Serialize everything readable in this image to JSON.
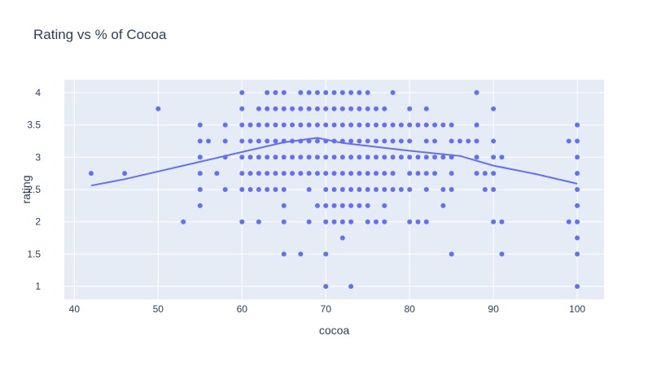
{
  "chart_data": {
    "type": "scatter",
    "title": "Rating vs % of Cocoa",
    "xlabel": "cocoa",
    "ylabel": "rating",
    "xlim": [
      38.8,
      103.2
    ],
    "ylim": [
      0.8,
      4.2
    ],
    "x_ticks": [
      40,
      50,
      60,
      70,
      80,
      90,
      100
    ],
    "y_ticks": [
      1,
      1.5,
      2,
      2.5,
      3,
      3.5,
      4
    ],
    "grid": true,
    "colors": {
      "marker": "#636efa",
      "plot_bg": "#e5ecf6",
      "grid": "#ffffff",
      "text": "#2a3f5f"
    },
    "series": [
      {
        "mode": "markers",
        "points": [
          [
            42,
            2.75
          ],
          [
            46,
            2.75
          ],
          [
            50,
            3.75
          ],
          [
            53,
            2
          ],
          [
            55,
            3.5
          ],
          [
            55,
            3.25
          ],
          [
            55,
            3
          ],
          [
            55,
            2.75
          ],
          [
            55,
            2.5
          ],
          [
            55,
            2.25
          ],
          [
            56,
            3.25
          ],
          [
            57,
            2.75
          ],
          [
            58,
            3.5
          ],
          [
            58,
            3.25
          ],
          [
            58,
            3
          ],
          [
            58,
            2.5
          ],
          [
            60,
            4
          ],
          [
            60,
            3.75
          ],
          [
            60,
            3.5
          ],
          [
            60,
            3.25
          ],
          [
            60,
            3
          ],
          [
            60,
            2.75
          ],
          [
            60,
            2.5
          ],
          [
            60,
            2
          ],
          [
            61,
            3.5
          ],
          [
            61,
            3.25
          ],
          [
            61,
            3
          ],
          [
            61,
            2.75
          ],
          [
            61,
            2.5
          ],
          [
            62,
            3.75
          ],
          [
            62,
            3.5
          ],
          [
            62,
            3.25
          ],
          [
            62,
            3
          ],
          [
            62,
            2.75
          ],
          [
            62,
            2.5
          ],
          [
            62,
            2
          ],
          [
            63,
            4
          ],
          [
            63,
            3.75
          ],
          [
            63,
            3.5
          ],
          [
            63,
            3.25
          ],
          [
            63,
            3
          ],
          [
            63,
            2.75
          ],
          [
            63,
            2.5
          ],
          [
            64,
            4
          ],
          [
            64,
            3.75
          ],
          [
            64,
            3.5
          ],
          [
            64,
            3.25
          ],
          [
            64,
            3
          ],
          [
            64,
            2.75
          ],
          [
            64,
            2.5
          ],
          [
            65,
            4
          ],
          [
            65,
            3.75
          ],
          [
            65,
            3.5
          ],
          [
            65,
            3.25
          ],
          [
            65,
            3
          ],
          [
            65,
            2.75
          ],
          [
            65,
            2.5
          ],
          [
            65,
            2.25
          ],
          [
            65,
            2
          ],
          [
            65,
            1.5
          ],
          [
            66,
            3.75
          ],
          [
            66,
            3.5
          ],
          [
            66,
            3.25
          ],
          [
            66,
            3
          ],
          [
            66,
            2.75
          ],
          [
            67,
            4
          ],
          [
            67,
            3.75
          ],
          [
            67,
            3.5
          ],
          [
            67,
            3.25
          ],
          [
            67,
            3
          ],
          [
            67,
            2.75
          ],
          [
            67,
            1.5
          ],
          [
            68,
            4
          ],
          [
            68,
            3.75
          ],
          [
            68,
            3.5
          ],
          [
            68,
            3.25
          ],
          [
            68,
            3
          ],
          [
            68,
            2.75
          ],
          [
            68,
            2.5
          ],
          [
            68,
            2
          ],
          [
            69,
            4
          ],
          [
            69,
            3.75
          ],
          [
            69,
            3.5
          ],
          [
            69,
            3.25
          ],
          [
            69,
            3
          ],
          [
            69,
            2.75
          ],
          [
            69,
            2.25
          ],
          [
            70,
            4
          ],
          [
            70,
            3.75
          ],
          [
            70,
            3.5
          ],
          [
            70,
            3.25
          ],
          [
            70,
            3
          ],
          [
            70,
            2.75
          ],
          [
            70,
            2.5
          ],
          [
            70,
            2.25
          ],
          [
            70,
            2
          ],
          [
            70,
            1.5
          ],
          [
            70,
            1
          ],
          [
            71,
            4
          ],
          [
            71,
            3.75
          ],
          [
            71,
            3.5
          ],
          [
            71,
            3.25
          ],
          [
            71,
            3
          ],
          [
            71,
            2.75
          ],
          [
            71,
            2.5
          ],
          [
            71,
            2.25
          ],
          [
            71,
            2
          ],
          [
            72,
            4
          ],
          [
            72,
            3.75
          ],
          [
            72,
            3.5
          ],
          [
            72,
            3.25
          ],
          [
            72,
            3
          ],
          [
            72,
            2.75
          ],
          [
            72,
            2.5
          ],
          [
            72,
            2.25
          ],
          [
            72,
            2
          ],
          [
            72,
            1.75
          ],
          [
            73,
            4
          ],
          [
            73,
            3.75
          ],
          [
            73,
            3.5
          ],
          [
            73,
            3.25
          ],
          [
            73,
            3
          ],
          [
            73,
            2.75
          ],
          [
            73,
            2.5
          ],
          [
            73,
            2.25
          ],
          [
            73,
            2
          ],
          [
            73,
            1
          ],
          [
            74,
            4
          ],
          [
            74,
            3.75
          ],
          [
            74,
            3.5
          ],
          [
            74,
            3.25
          ],
          [
            74,
            3
          ],
          [
            74,
            2.75
          ],
          [
            74,
            2.5
          ],
          [
            74,
            2.25
          ],
          [
            75,
            4
          ],
          [
            75,
            3.75
          ],
          [
            75,
            3.5
          ],
          [
            75,
            3.25
          ],
          [
            75,
            3
          ],
          [
            75,
            2.75
          ],
          [
            75,
            2.5
          ],
          [
            75,
            2.25
          ],
          [
            75,
            2
          ],
          [
            76,
            3.75
          ],
          [
            76,
            3.5
          ],
          [
            76,
            3.25
          ],
          [
            76,
            3
          ],
          [
            76,
            2.75
          ],
          [
            76,
            2.5
          ],
          [
            76,
            2
          ],
          [
            77,
            3.75
          ],
          [
            77,
            3.5
          ],
          [
            77,
            3.25
          ],
          [
            77,
            3
          ],
          [
            77,
            2.75
          ],
          [
            77,
            2.5
          ],
          [
            77,
            2.25
          ],
          [
            77,
            2
          ],
          [
            78,
            4
          ],
          [
            78,
            3.5
          ],
          [
            78,
            3.25
          ],
          [
            78,
            3
          ],
          [
            78,
            2.75
          ],
          [
            78,
            2.5
          ],
          [
            79,
            3.5
          ],
          [
            79,
            3.25
          ],
          [
            79,
            3
          ],
          [
            79,
            2.5
          ],
          [
            80,
            3.75
          ],
          [
            80,
            3.5
          ],
          [
            80,
            3.25
          ],
          [
            80,
            3
          ],
          [
            80,
            2.75
          ],
          [
            80,
            2.5
          ],
          [
            80,
            2
          ],
          [
            81,
            3.5
          ],
          [
            81,
            3
          ],
          [
            81,
            2.75
          ],
          [
            81,
            2
          ],
          [
            82,
            3.75
          ],
          [
            82,
            3.5
          ],
          [
            82,
            3.25
          ],
          [
            82,
            3
          ],
          [
            82,
            2.75
          ],
          [
            82,
            2.5
          ],
          [
            82,
            2
          ],
          [
            83,
            3.5
          ],
          [
            83,
            3.25
          ],
          [
            83,
            3
          ],
          [
            83,
            2.75
          ],
          [
            84,
            3.5
          ],
          [
            84,
            3
          ],
          [
            84,
            2.5
          ],
          [
            84,
            2.25
          ],
          [
            85,
            3.5
          ],
          [
            85,
            3.25
          ],
          [
            85,
            3
          ],
          [
            85,
            2.75
          ],
          [
            85,
            2.5
          ],
          [
            85,
            1.5
          ],
          [
            86,
            3.25
          ],
          [
            87,
            3.25
          ],
          [
            88,
            4
          ],
          [
            88,
            3.5
          ],
          [
            88,
            3.25
          ],
          [
            88,
            3
          ],
          [
            88,
            2.75
          ],
          [
            89,
            2.75
          ],
          [
            89,
            2.5
          ],
          [
            90,
            3.75
          ],
          [
            90,
            3.25
          ],
          [
            90,
            3
          ],
          [
            90,
            2.75
          ],
          [
            90,
            2.5
          ],
          [
            90,
            2
          ],
          [
            91,
            3
          ],
          [
            91,
            2
          ],
          [
            91,
            1.5
          ],
          [
            99,
            3.25
          ],
          [
            99,
            2
          ],
          [
            100,
            3.5
          ],
          [
            100,
            3.25
          ],
          [
            100,
            3
          ],
          [
            100,
            2.75
          ],
          [
            100,
            2.5
          ],
          [
            100,
            2.25
          ],
          [
            100,
            2
          ],
          [
            100,
            1.75
          ],
          [
            100,
            1.5
          ],
          [
            100,
            1
          ]
        ]
      },
      {
        "mode": "lines",
        "points": [
          [
            42,
            2.56
          ],
          [
            46,
            2.66
          ],
          [
            50,
            2.78
          ],
          [
            55,
            2.93
          ],
          [
            60,
            3.08
          ],
          [
            65,
            3.23
          ],
          [
            69,
            3.3
          ],
          [
            72,
            3.22
          ],
          [
            76,
            3.16
          ],
          [
            80,
            3.1
          ],
          [
            86,
            3.02
          ],
          [
            90,
            2.87
          ],
          [
            95,
            2.74
          ],
          [
            100,
            2.59
          ]
        ]
      }
    ]
  }
}
